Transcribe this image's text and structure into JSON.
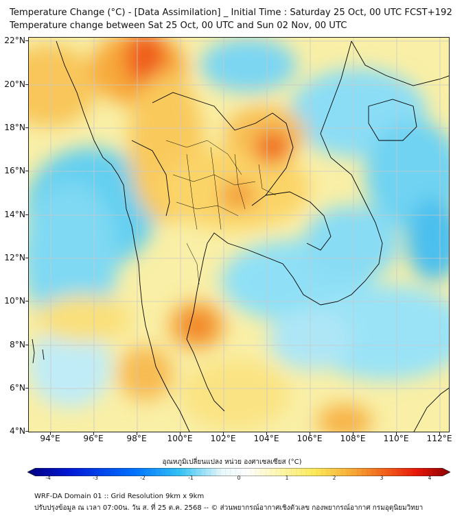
{
  "header": {
    "title_line1": "Temperature Change (°C) - [Data Assimilation] _ Initial Time : Saturday 25 Oct, 00 UTC FCST+192",
    "title_line2": "Temperature change between Sat 25 Oct, 00 UTC and Sun 02 Nov, 00 UTC"
  },
  "map": {
    "lat_labels": [
      "22°N",
      "20°N",
      "18°N",
      "16°N",
      "14°N",
      "12°N",
      "10°N",
      "8°N",
      "6°N",
      "4°N"
    ],
    "lon_labels": [
      "94°E",
      "96°E",
      "98°E",
      "100°E",
      "102°E",
      "104°E",
      "106°E",
      "108°E",
      "110°E",
      "112°E"
    ],
    "lat_range": [
      4,
      22.3
    ],
    "lon_range": [
      93,
      112.5
    ],
    "grid": true,
    "border_color": "#000000",
    "gridline_color": "#c8c8c8"
  },
  "colorbar": {
    "label": "อุณหภูมิเปลี่ยนแปลง หน่วย องศาเซลเซียส (°C)",
    "ticks": [
      "-4",
      "-3",
      "-2",
      "-1",
      "0",
      "1",
      "2",
      "3",
      "4"
    ],
    "range": [
      -4,
      4
    ],
    "colors": [
      "#000080",
      "#0019d6",
      "#0070ff",
      "#33c2f5",
      "#e8f8fb",
      "#ffffff",
      "#fff6a8",
      "#fde95a",
      "#f7b13a",
      "#f2661c",
      "#e8180a",
      "#8b0000"
    ]
  },
  "footer": {
    "line1": "WRF-DA Domain 01 :: Grid Resolution 9km x 9km",
    "line2": "ปรับปรุงข้อมูล ณ เวลา 07:00น. วัน ส. ที่ 25 ต.ค. 2568 -- © ส่วนพยากรณ์อากาศเชิงตัวเลข กองพยากรณ์อากาศ กรมอุตุนิยมวิทยา"
  }
}
